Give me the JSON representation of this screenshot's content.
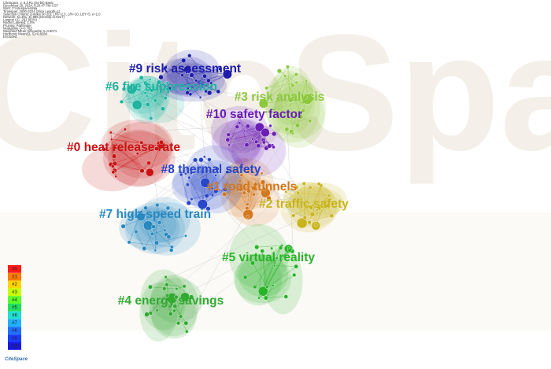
{
  "header": {
    "lines": [
      "CiteSpace, v. 6.3.R1 (64-bit) Basic",
      "December 26, 2024, 9:20:47 PM CST",
      "WoS: F:\\citespace\\data",
      "Timespan: 2000-2024 (Slice Length=1)",
      "Selection Criteria: g-index (k=25), LRF=2.5, L/N=10, LBY=5, e=1.0",
      "Network: N=301, E=985 (Density=0.0217)",
      "Largest CC: 251 (83%)",
      "Nodes Labeled: 1.0%",
      "Pruning: Pathfinder",
      "Modularity Q=0.763",
      "Weighted Mean Silhouette S=0.9071",
      "Harmonic Mean(Q, S)=0.8284",
      "Excluded:"
    ]
  },
  "watermark": "CiteSpace",
  "clusters": [
    {
      "label": "#0 heat release rate",
      "color": "#c81414"
    },
    {
      "label": "#1 road tunnels",
      "color": "#d2781e"
    },
    {
      "label": "#2 traffic safety",
      "color": "#c8b41e"
    },
    {
      "label": "#3 risk analysis",
      "color": "#8cc83c"
    },
    {
      "label": "#4 energy savings",
      "color": "#32aa32"
    },
    {
      "label": "#5 virtual reality",
      "color": "#28b428"
    },
    {
      "label": "#6 fire suppression",
      "color": "#1eb4a0"
    },
    {
      "label": "#7 high-speed train",
      "color": "#2888c0"
    },
    {
      "label": "#8 thermal safety",
      "color": "#2846c8"
    },
    {
      "label": "#9 risk assessment",
      "color": "#1e1eaa"
    },
    {
      "label": "#10 safety factor",
      "color": "#6a1eb4"
    }
  ],
  "legend": {
    "items": [
      {
        "label": "#0",
        "color": "#ff1a1a"
      },
      {
        "label": "#1",
        "color": "#ff7a00"
      },
      {
        "label": "#2",
        "color": "#ffd400"
      },
      {
        "label": "#3",
        "color": "#c8ff00"
      },
      {
        "label": "#4",
        "color": "#5aff2a"
      },
      {
        "label": "#5",
        "color": "#20e060"
      },
      {
        "label": "#6",
        "color": "#20e0d0"
      },
      {
        "label": "#7",
        "color": "#20b0ff"
      },
      {
        "label": "#8",
        "color": "#2070ff"
      },
      {
        "label": "#9",
        "color": "#1a3cff"
      },
      {
        "label": "#10",
        "color": "#1a1ae0"
      }
    ]
  },
  "logo": "CiteSpace"
}
